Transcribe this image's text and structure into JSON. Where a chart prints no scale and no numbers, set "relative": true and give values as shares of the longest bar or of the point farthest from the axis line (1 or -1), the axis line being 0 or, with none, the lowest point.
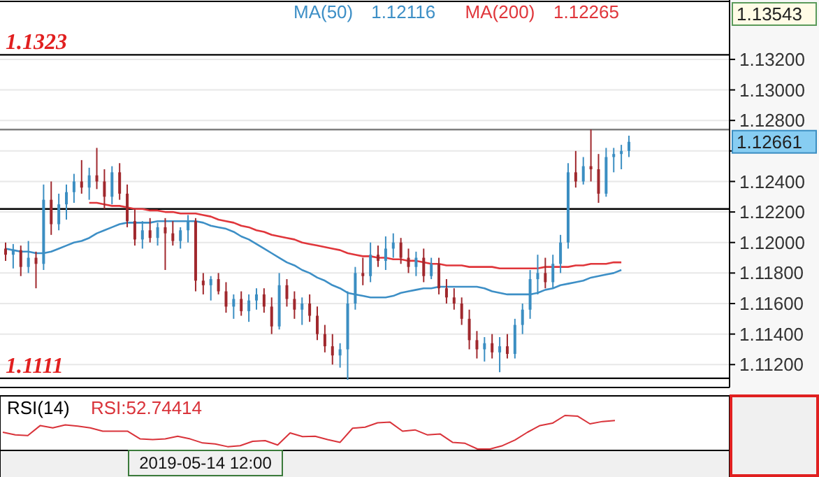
{
  "chart_data": [
    {
      "type": "candlestick",
      "legend": "top left",
      "grid": "y",
      "categories": [
        null,
        null,
        null,
        null,
        null,
        null,
        null,
        null,
        null,
        null,
        null,
        null,
        null,
        null,
        null,
        null,
        null,
        null,
        null,
        null,
        null,
        null,
        null,
        null,
        null,
        null,
        null,
        null,
        null,
        null,
        null,
        null,
        null,
        null,
        null,
        null,
        null,
        null,
        null,
        null,
        null,
        null,
        null,
        null,
        null,
        null,
        null,
        null,
        null,
        null,
        null,
        null,
        null,
        null,
        null,
        null,
        null,
        null,
        null,
        null,
        null,
        null,
        null,
        null,
        null,
        null,
        null,
        null,
        null,
        null,
        null,
        null,
        null,
        null,
        null,
        null,
        null,
        null,
        null,
        null,
        null,
        null,
        null
      ],
      "colors": [
        "#a0282d",
        "#3b8ec2",
        "#a0282d",
        "#3b8ec2",
        "#a0282d",
        "#3b8ec2",
        "#a0282d",
        "#3b8ec2",
        "#3b8ec2",
        "#3b8ec2",
        "#a0282d",
        "#3b8ec2",
        "#a0282d",
        "#a0282d",
        "#3b8ec2",
        "#a0282d",
        "#a0282d",
        "#a0282d",
        "#3b8ec2",
        "#a0282d",
        "#3b8ec2",
        "#a0282d",
        "#a0282d",
        "#3b8ec2",
        "#3b8ec2",
        "#a0282d",
        "#a0282d",
        "#3b8ec2",
        "#a0282d",
        "#a0282d",
        "#3b8ec2",
        "#a0282d",
        "#3b8ec2",
        "#3b8ec2",
        "#a0282d",
        "#a0282d",
        "#3b8ec2",
        "#a0282d",
        "#a0282d",
        "#3b8ec2",
        "#a0282d",
        "#a0282d",
        "#a0282d",
        "#a0282d",
        "#3b8ec2",
        "#3b8ec2",
        "#3b8ec2",
        "#a0282d",
        "#3b8ec2",
        "#a0282d",
        "#3b8ec2",
        "#3b8ec2",
        "#a0282d",
        "#a0282d",
        "#3b8ec2",
        "#a0282d",
        "#3b8ec2",
        "#a0282d",
        "#a0282d",
        "#a0282d",
        "#a0282d",
        "#a0282d",
        "#a0282d",
        "#3b8ec2",
        "#a0282d",
        "#3b8ec2",
        "#a0282d",
        "#3b8ec2",
        "#3b8ec2",
        "#3b8ec2",
        "#3b8ec2",
        "#a0282d",
        "#3b8ec2",
        "#3b8ec2",
        "#3b8ec2",
        "#a0282d",
        "#3b8ec2",
        "#a0282d",
        "#a0282d",
        "#3b8ec2",
        "#3b8ec2",
        "#3b8ec2",
        "#3b8ec2"
      ],
      "ohlc": [
        [
          1.1196,
          1.12,
          1.1188,
          1.1192
        ],
        [
          1.1192,
          1.1199,
          1.1183,
          1.1195
        ],
        [
          1.1195,
          1.1198,
          1.1178,
          1.1184
        ],
        [
          1.1184,
          1.1201,
          1.118,
          1.119
        ],
        [
          1.119,
          1.1194,
          1.117,
          1.1186
        ],
        [
          1.1186,
          1.1238,
          1.1182,
          1.1228
        ],
        [
          1.1228,
          1.124,
          1.1205,
          1.1212
        ],
        [
          1.1212,
          1.1232,
          1.1208,
          1.1225
        ],
        [
          1.1225,
          1.1238,
          1.1215,
          1.1233
        ],
        [
          1.1233,
          1.1245,
          1.1226,
          1.124
        ],
        [
          1.124,
          1.1254,
          1.1232,
          1.1236
        ],
        [
          1.1236,
          1.1249,
          1.1228,
          1.1244
        ],
        [
          1.1244,
          1.1262,
          1.1235,
          1.124
        ],
        [
          1.124,
          1.1248,
          1.1222,
          1.123
        ],
        [
          1.123,
          1.125,
          1.1225,
          1.1246
        ],
        [
          1.1246,
          1.1252,
          1.1228,
          1.1232
        ],
        [
          1.1232,
          1.1238,
          1.121,
          1.1214
        ],
        [
          1.1214,
          1.1222,
          1.1198,
          1.1202
        ],
        [
          1.1202,
          1.1214,
          1.1196,
          1.1208
        ],
        [
          1.1208,
          1.1216,
          1.12,
          1.1203
        ],
        [
          1.1203,
          1.1213,
          1.1198,
          1.121
        ],
        [
          1.121,
          1.1216,
          1.1182,
          1.1206
        ],
        [
          1.1206,
          1.1214,
          1.1198,
          1.1201
        ],
        [
          1.1201,
          1.121,
          1.1196,
          1.1208
        ],
        [
          1.1208,
          1.1218,
          1.12,
          1.1214
        ],
        [
          1.1214,
          1.1216,
          1.1168,
          1.1175
        ],
        [
          1.1175,
          1.118,
          1.1166,
          1.1172
        ],
        [
          1.1172,
          1.1178,
          1.1162,
          1.1176
        ],
        [
          1.1176,
          1.118,
          1.1166,
          1.1168
        ],
        [
          1.1168,
          1.1174,
          1.1154,
          1.1158
        ],
        [
          1.1158,
          1.1166,
          1.115,
          1.1163
        ],
        [
          1.1163,
          1.1168,
          1.1152,
          1.1155
        ],
        [
          1.1155,
          1.1166,
          1.1148,
          1.1162
        ],
        [
          1.1162,
          1.117,
          1.1156,
          1.1166
        ],
        [
          1.1166,
          1.117,
          1.1154,
          1.1158
        ],
        [
          1.1158,
          1.1164,
          1.114,
          1.1145
        ],
        [
          1.1145,
          1.118,
          1.1143,
          1.1172
        ],
        [
          1.1172,
          1.1176,
          1.1158,
          1.1163
        ],
        [
          1.1163,
          1.1168,
          1.115,
          1.1156
        ],
        [
          1.1156,
          1.1164,
          1.1146,
          1.116
        ],
        [
          1.116,
          1.1166,
          1.1148,
          1.1152
        ],
        [
          1.1152,
          1.1158,
          1.1136,
          1.114
        ],
        [
          1.114,
          1.1146,
          1.1128,
          1.1132
        ],
        [
          1.1132,
          1.114,
          1.112,
          1.1126
        ],
        [
          1.1126,
          1.1134,
          1.1118,
          1.113
        ],
        [
          1.113,
          1.1168,
          1.111,
          1.116
        ],
        [
          1.116,
          1.1184,
          1.1156,
          1.118
        ],
        [
          1.118,
          1.119,
          1.1172,
          1.1178
        ],
        [
          1.1178,
          1.12,
          1.1174,
          1.1192
        ],
        [
          1.1192,
          1.1198,
          1.1184,
          1.1188
        ],
        [
          1.1188,
          1.1204,
          1.1182,
          1.1196
        ],
        [
          1.1196,
          1.1206,
          1.119,
          1.12
        ],
        [
          1.12,
          1.1203,
          1.1186,
          1.119
        ],
        [
          1.119,
          1.1196,
          1.118,
          1.1184
        ],
        [
          1.1184,
          1.1194,
          1.1178,
          1.119
        ],
        [
          1.119,
          1.1196,
          1.1174,
          1.1178
        ],
        [
          1.1178,
          1.119,
          1.1176,
          1.1186
        ],
        [
          1.1186,
          1.119,
          1.1166,
          1.117
        ],
        [
          1.117,
          1.1176,
          1.116,
          1.1164
        ],
        [
          1.1164,
          1.117,
          1.1156,
          1.116
        ],
        [
          1.116,
          1.1164,
          1.1146,
          1.115
        ],
        [
          1.115,
          1.1156,
          1.113,
          1.1136
        ],
        [
          1.1136,
          1.1142,
          1.1124,
          1.113
        ],
        [
          1.113,
          1.1138,
          1.1122,
          1.1134
        ],
        [
          1.1134,
          1.114,
          1.1124,
          1.1128
        ],
        [
          1.1128,
          1.1138,
          1.1115,
          1.1132
        ],
        [
          1.1132,
          1.114,
          1.1124,
          1.1127
        ],
        [
          1.1127,
          1.115,
          1.1124,
          1.1146
        ],
        [
          1.1146,
          1.116,
          1.114,
          1.1156
        ],
        [
          1.1156,
          1.1182,
          1.115,
          1.1176
        ],
        [
          1.1176,
          1.1192,
          1.1166,
          1.118
        ],
        [
          1.118,
          1.119,
          1.117,
          1.1174
        ],
        [
          1.1174,
          1.1192,
          1.117,
          1.1186
        ],
        [
          1.1186,
          1.1205,
          1.118,
          1.12
        ],
        [
          1.12,
          1.1252,
          1.1196,
          1.1246
        ],
        [
          1.1246,
          1.126,
          1.1236,
          1.124
        ],
        [
          1.124,
          1.1256,
          1.1238,
          1.125
        ],
        [
          1.125,
          1.1274,
          1.124,
          1.1248
        ],
        [
          1.1248,
          1.1258,
          1.1226,
          1.1232
        ],
        [
          1.1232,
          1.1262,
          1.123,
          1.1256
        ],
        [
          1.1256,
          1.1262,
          1.1246,
          1.1258
        ],
        [
          1.1258,
          1.1264,
          1.1248,
          1.126
        ],
        [
          1.126,
          1.127,
          1.1256,
          1.1266
        ]
      ],
      "series": [
        {
          "name": "MA(50)",
          "type": "line",
          "color": "#3d8fc6",
          "values": [
            1.1196,
            1.1195,
            1.1194,
            1.1194,
            1.1193,
            1.1193,
            1.1194,
            1.1196,
            1.1198,
            1.12,
            1.1201,
            1.1203,
            1.1206,
            1.1208,
            1.121,
            1.1212,
            1.1213,
            1.1213,
            1.1213,
            1.1213,
            1.1214,
            1.1214,
            1.1214,
            1.1214,
            1.1214,
            1.1214,
            1.1213,
            1.1211,
            1.121,
            1.1209,
            1.1207,
            1.1204,
            1.1202,
            1.1199,
            1.1196,
            1.1193,
            1.119,
            1.1187,
            1.1185,
            1.1182,
            1.118,
            1.1177,
            1.1175,
            1.1172,
            1.117,
            1.1167,
            1.1166,
            1.1165,
            1.1164,
            1.1164,
            1.1164,
            1.1165,
            1.1167,
            1.1168,
            1.1169,
            1.117,
            1.117,
            1.1171,
            1.1171,
            1.1171,
            1.1171,
            1.1171,
            1.1171,
            1.117,
            1.1168,
            1.1167,
            1.1166,
            1.1166,
            1.1166,
            1.1166,
            1.1167,
            1.1169,
            1.117,
            1.1172,
            1.1173,
            1.1174,
            1.1175,
            1.1177,
            1.1178,
            1.1179,
            1.118,
            1.1182,
            null
          ]
        },
        {
          "name": "MA(200)",
          "type": "line",
          "color": "#e0363b",
          "values": [
            null,
            null,
            null,
            null,
            null,
            null,
            null,
            null,
            null,
            null,
            null,
            1.1226,
            1.1226,
            1.1225,
            1.1224,
            1.1224,
            1.1223,
            1.1222,
            1.1222,
            1.1221,
            1.1221,
            1.122,
            1.122,
            1.1219,
            1.1219,
            1.1219,
            1.1218,
            1.1217,
            1.1215,
            1.1214,
            1.1213,
            1.1211,
            1.121,
            1.1208,
            1.1207,
            1.1205,
            1.1204,
            1.1203,
            1.1202,
            1.12,
            1.1199,
            1.1198,
            1.1197,
            1.1196,
            1.1195,
            1.1193,
            1.1192,
            1.1191,
            1.1191,
            1.119,
            1.119,
            1.1189,
            1.1189,
            1.1188,
            1.1188,
            1.1187,
            1.1186,
            1.1186,
            1.1185,
            1.1185,
            1.1185,
            1.1184,
            1.1184,
            1.1184,
            1.1184,
            1.1183,
            1.1183,
            1.1183,
            1.1183,
            1.1183,
            1.1183,
            1.1184,
            1.1184,
            1.1184,
            1.1184,
            1.1185,
            1.1185,
            1.1186,
            1.1186,
            1.1186,
            1.1187,
            1.1187,
            null
          ]
        }
      ],
      "ylim": [
        1.1105,
        1.1358
      ],
      "yticks": [
        {
          "value": 1.112,
          "label": "1.11200"
        },
        {
          "value": 1.114,
          "label": "1.11400"
        },
        {
          "value": 1.116,
          "label": "1.11600"
        },
        {
          "value": 1.118,
          "label": "1.11800"
        },
        {
          "value": 1.12,
          "label": "1.12000"
        },
        {
          "value": 1.122,
          "label": "1.12200"
        },
        {
          "value": 1.124,
          "label": "1.12400"
        },
        {
          "value": 1.126,
          "label": null
        },
        {
          "value": 1.128,
          "label": "1.12800"
        },
        {
          "value": 1.13,
          "label": "1.13000"
        },
        {
          "value": 1.132,
          "label": "1.13200"
        }
      ],
      "ref_lines": [
        {
          "axis": "y",
          "value": 1.1323,
          "label": "1.1323",
          "color": "#000000"
        },
        {
          "axis": "y",
          "value": 1.1274,
          "color": "#808080"
        },
        {
          "axis": "y",
          "value": 1.1222,
          "color": "#000000"
        },
        {
          "axis": "y",
          "value": 1.1111,
          "label": "1.1111",
          "color": "#000000"
        }
      ],
      "annotations": [
        "1.12116",
        "1.12265",
        "1.13543",
        "1.12661"
      ]
    },
    {
      "type": "line",
      "relative": true,
      "title": "RSI(14)",
      "categories": [
        null,
        null,
        null,
        null,
        null,
        null,
        null,
        null,
        null,
        null,
        null,
        null,
        null,
        null,
        null,
        null,
        null,
        null,
        null,
        null,
        null,
        null,
        null,
        null,
        null,
        null,
        null,
        null,
        null,
        null,
        null,
        null,
        null,
        null,
        null,
        null,
        null,
        null,
        null,
        null,
        null,
        null,
        null,
        null,
        null,
        null,
        null,
        null,
        null,
        null
      ],
      "series": [
        {
          "color": "#d9333a",
          "values": [
            0.5,
            0.42,
            0.4,
            0.7,
            0.63,
            0.72,
            0.68,
            0.63,
            0.53,
            0.53,
            0.53,
            0.3,
            0.28,
            0.3,
            0.38,
            0.3,
            0.18,
            0.15,
            0.07,
            0.1,
            0.23,
            0.25,
            0.12,
            0.48,
            0.37,
            0.38,
            0.28,
            0.2,
            0.62,
            0.65,
            0.78,
            0.8,
            0.53,
            0.57,
            0.42,
            0.45,
            0.2,
            0.17,
            0,
            0,
            0.1,
            0.27,
            0.5,
            0.7,
            0.77,
            1,
            0.98,
            0.75,
            0.82,
            0.85
          ]
        }
      ],
      "annotations": [
        "RSI:52.74414",
        "2019-05-14 12:00"
      ]
    }
  ]
}
